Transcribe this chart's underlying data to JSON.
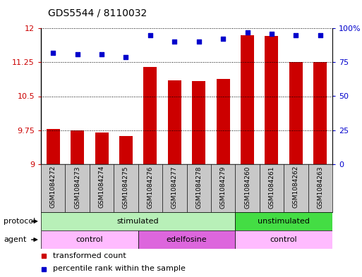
{
  "title": "GDS5544 / 8110032",
  "samples": [
    "GSM1084272",
    "GSM1084273",
    "GSM1084274",
    "GSM1084275",
    "GSM1084276",
    "GSM1084277",
    "GSM1084278",
    "GSM1084279",
    "GSM1084260",
    "GSM1084261",
    "GSM1084262",
    "GSM1084263"
  ],
  "bar_values": [
    9.78,
    9.75,
    9.7,
    9.62,
    11.15,
    10.85,
    10.83,
    10.88,
    11.85,
    11.83,
    11.25,
    11.25
  ],
  "dot_values": [
    82,
    81,
    81,
    79,
    95,
    90,
    90,
    92,
    97,
    96,
    95,
    95
  ],
  "bar_color": "#cc0000",
  "dot_color": "#0000cc",
  "ylim_left": [
    9,
    12
  ],
  "ylim_right": [
    0,
    100
  ],
  "yticks_left": [
    9,
    9.75,
    10.5,
    11.25,
    12
  ],
  "yticks_right": [
    0,
    25,
    50,
    75,
    100
  ],
  "ytick_labels_right": [
    "0",
    "25",
    "50",
    "75",
    "100%"
  ],
  "protocol_groups": [
    {
      "label": "stimulated",
      "start": 0,
      "end": 8,
      "color": "#b8f0b8"
    },
    {
      "label": "unstimulated",
      "start": 8,
      "end": 12,
      "color": "#44dd44"
    }
  ],
  "agent_groups": [
    {
      "label": "control",
      "start": 0,
      "end": 4,
      "color": "#ffbbff"
    },
    {
      "label": "edelfosine",
      "start": 4,
      "end": 8,
      "color": "#dd66dd"
    },
    {
      "label": "control",
      "start": 8,
      "end": 12,
      "color": "#ffbbff"
    }
  ],
  "label_bg_color": "#c8c8c8",
  "legend_bar_label": "transformed count",
  "legend_dot_label": "percentile rank within the sample",
  "protocol_label": "protocol",
  "agent_label": "agent"
}
